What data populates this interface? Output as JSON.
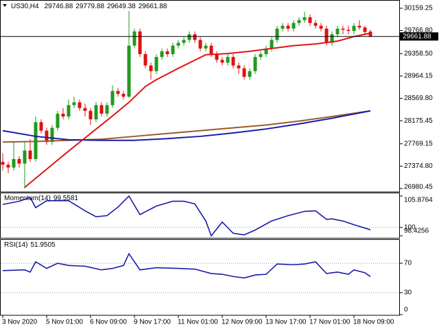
{
  "chart_data": [
    {
      "type": "candlestick",
      "title": "US30,H4",
      "up_color": "#1f9a1f",
      "down_color": "#e01010",
      "price_line": true,
      "open": [
        27450,
        27400,
        27350,
        27500,
        27420,
        27650,
        27500,
        28150,
        28000,
        27800,
        28050,
        28300,
        28250,
        28450,
        28500,
        28400,
        28350,
        28200,
        28450,
        28300,
        28450,
        28700,
        28650,
        28600,
        29500,
        29750,
        29350,
        29150,
        29050,
        29300,
        29400,
        29350,
        29500,
        29550,
        29600,
        29700,
        29600,
        29450,
        29500,
        29350,
        29250,
        29200,
        29300,
        29150,
        29100,
        28950,
        29050,
        29300,
        29350,
        29450,
        29600,
        29800,
        29850,
        29800,
        29900,
        29950,
        30000,
        29900,
        29850,
        29800,
        29550,
        29700,
        29800,
        29780,
        29760,
        29850,
        29820,
        29746.88
      ],
      "high": [
        27600,
        27450,
        27800,
        27550,
        27800,
        27850,
        28250,
        28200,
        28050,
        28100,
        28350,
        28400,
        28550,
        28600,
        28550,
        28480,
        28400,
        28500,
        28500,
        28500,
        28800,
        28750,
        28700,
        30110,
        29800,
        29800,
        29400,
        29200,
        29350,
        29450,
        29450,
        29550,
        29600,
        29650,
        29750,
        29750,
        29650,
        29550,
        29550,
        29400,
        29300,
        29350,
        29350,
        29200,
        29150,
        29100,
        29350,
        29400,
        29500,
        29650,
        29850,
        29900,
        29900,
        29950,
        30000,
        30100,
        30050,
        29950,
        29900,
        29850,
        29750,
        29850,
        29850,
        29850,
        29900,
        29950,
        29850,
        29779.88
      ],
      "low": [
        27300,
        27250,
        27300,
        27350,
        26980,
        27450,
        27450,
        27950,
        27750,
        27750,
        28000,
        28200,
        28200,
        28400,
        28350,
        28250,
        28100,
        28150,
        28250,
        28250,
        28400,
        28600,
        28550,
        28580,
        29450,
        29300,
        29100,
        28900,
        29000,
        29250,
        29300,
        29300,
        29450,
        29500,
        29550,
        29550,
        29400,
        29400,
        29300,
        29200,
        29150,
        29150,
        29100,
        29000,
        28900,
        28900,
        29000,
        29250,
        29300,
        29400,
        29550,
        29750,
        29750,
        29750,
        29850,
        29900,
        29850,
        29800,
        29750,
        29500,
        29500,
        29650,
        29700,
        29700,
        29700,
        29780,
        29700,
        29649.38
      ],
      "close": [
        27400,
        27350,
        27500,
        27420,
        27650,
        27500,
        28150,
        28000,
        27800,
        28050,
        28300,
        28250,
        28450,
        28500,
        28400,
        28350,
        28200,
        28450,
        28300,
        28450,
        28700,
        28650,
        28600,
        29500,
        29750,
        29350,
        29150,
        29050,
        29300,
        29400,
        29350,
        29500,
        29550,
        29600,
        29700,
        29600,
        29450,
        29500,
        29350,
        29250,
        29200,
        29300,
        29150,
        29100,
        28950,
        29050,
        29300,
        29350,
        29450,
        29600,
        29800,
        29850,
        29800,
        29900,
        29950,
        30000,
        29900,
        29850,
        29800,
        29550,
        29700,
        29800,
        29780,
        29760,
        29850,
        29820,
        29740,
        29661.88
      ],
      "series": [
        {
          "color": "#9a5a2a",
          "x": [
            0,
            6,
            12,
            18,
            24,
            30,
            36,
            42,
            48,
            54,
            60,
            67
          ],
          "values": [
            27800,
            27810,
            27830,
            27850,
            27900,
            27950,
            28000,
            28050,
            28100,
            28170,
            28250,
            28350
          ]
        },
        {
          "color": "#1a1aaa",
          "x": [
            0,
            6,
            12,
            18,
            24,
            30,
            36,
            42,
            48,
            54,
            60,
            67
          ],
          "values": [
            28000,
            27900,
            27840,
            27830,
            27830,
            27860,
            27900,
            27960,
            28030,
            28120,
            28220,
            28350
          ]
        },
        {
          "color": "#e01414",
          "x": [
            4,
            8,
            12,
            16,
            20,
            23,
            26,
            28,
            32,
            37,
            41,
            45,
            49,
            53,
            57,
            61,
            64,
            67
          ],
          "values": [
            27000,
            27320,
            27640,
            27950,
            28260,
            28500,
            28780,
            28900,
            29100,
            29340,
            29360,
            29400,
            29450,
            29500,
            29530,
            29580,
            29660,
            29720
          ]
        }
      ],
      "ylim": [
        26920,
        30305
      ],
      "yticks": [
        30159.25,
        {
          "value": 29766.8,
          "label": "29766.80"
        },
        {
          "value": 29358.5,
          "label": "29358.50"
        },
        28964.15,
        {
          "value": 28569.8,
          "label": "28569.80"
        },
        28175.45,
        27769.15,
        {
          "value": 27374.8,
          "label": "27374.80"
        },
        26980.45
      ]
    },
    {
      "type": "line",
      "title": "Momentum(14)",
      "series": [
        {
          "color": "#1a1aaa",
          "x": [
            0,
            3,
            5,
            6,
            8,
            12,
            15,
            17,
            19,
            21,
            23,
            25,
            28,
            31,
            33,
            35,
            37,
            38,
            40,
            42,
            44,
            46,
            49,
            52,
            55,
            57,
            59,
            60,
            62,
            64,
            67
          ],
          "values": [
            104.3,
            104.9,
            105.6,
            103.7,
            105.0,
            105.0,
            103.1,
            102.0,
            102.2,
            103.8,
            105.8764,
            102.4,
            104.0,
            104.9,
            104.9,
            104.4,
            101.2,
            98.4256,
            101.0,
            98.9,
            98.6,
            99.5,
            101.2,
            102.2,
            103.0,
            103.1,
            101.5,
            101.6,
            101.2,
            100.5,
            99.5581
          ]
        }
      ],
      "ylim": [
        98.4256,
        105.8764
      ],
      "yticks": [
        105.8764,
        100,
        98.4256
      ],
      "levels": [
        100
      ]
    },
    {
      "type": "line",
      "title": "RSI(14)",
      "series": [
        {
          "color": "#1a1aaa",
          "x": [
            0,
            4,
            5,
            6,
            8,
            10,
            12,
            15,
            18,
            20,
            22,
            23,
            25,
            28,
            32,
            35,
            38,
            40,
            42,
            44,
            46,
            48,
            50,
            53,
            55,
            57,
            59,
            61,
            63,
            64,
            66,
            67
          ],
          "values": [
            60,
            61,
            58,
            72,
            63,
            70,
            67,
            66,
            61,
            63,
            67,
            83,
            61,
            64,
            63,
            62,
            56,
            55,
            52,
            50,
            54,
            55,
            69,
            68,
            69,
            72,
            56,
            58,
            55,
            61,
            57,
            51.9505
          ]
        }
      ],
      "ylim": [
        0,
        100
      ],
      "yticks": [
        70,
        30,
        0
      ],
      "levels": [
        70,
        30
      ],
      "xticks": [
        {
          "value": 0,
          "label": "3 Nov 2020"
        },
        {
          "value": 8,
          "label": "5 Nov 01:00"
        },
        {
          "value": 16,
          "label": "6 Nov 09:00"
        },
        {
          "value": 24,
          "label": "9 Nov 17:00"
        },
        {
          "value": 32,
          "label": "11 Nov 01:00"
        },
        {
          "value": 40,
          "label": "12 Nov 09:00"
        },
        {
          "value": 48,
          "label": "13 Nov 17:00"
        },
        {
          "value": 56,
          "label": "17 Nov 01:00"
        },
        {
          "value": 64,
          "label": "18 Nov 09:00"
        }
      ]
    }
  ]
}
